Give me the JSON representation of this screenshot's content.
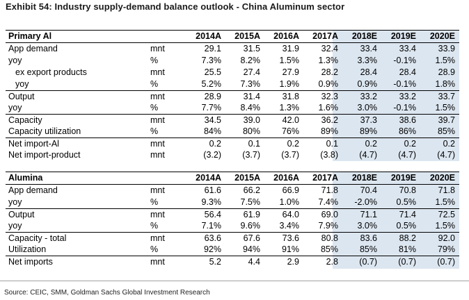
{
  "title": "Exhibit 54: Industry supply-demand balance outlook - China Aluminum sector",
  "tables": [
    {
      "name": "Primary Al",
      "columns": [
        "2014A",
        "2015A",
        "2016A",
        "2017A",
        "2018E",
        "2019E",
        "2020E"
      ],
      "rows": [
        {
          "label": "App demand",
          "unit": "mnt",
          "values": [
            "29.1",
            "31.5",
            "31.9",
            "32.4",
            "33.4",
            "33.4",
            "33.9"
          ]
        },
        {
          "label": "yoy",
          "unit": "%",
          "values": [
            "7.3%",
            "8.2%",
            "1.5%",
            "1.3%",
            "3.3%",
            "-0.1%",
            "1.5%"
          ]
        },
        {
          "label": "ex export products",
          "unit": "mnt",
          "values": [
            "25.5",
            "27.4",
            "27.9",
            "28.2",
            "28.4",
            "28.4",
            "28.9"
          ]
        },
        {
          "label": "yoy",
          "unit": "%",
          "values": [
            "5.2%",
            "7.3%",
            "1.9%",
            "0.9%",
            "0.9%",
            "-0.1%",
            "1.8%"
          ]
        },
        {
          "label": "Output",
          "unit": "mnt",
          "values": [
            "28.9",
            "31.4",
            "31.8",
            "32.3",
            "33.2",
            "33.2",
            "33.7"
          ]
        },
        {
          "label": "yoy",
          "unit": "%",
          "values": [
            "7.7%",
            "8.4%",
            "1.3%",
            "1.6%",
            "3.0%",
            "-0.1%",
            "1.5%"
          ]
        },
        {
          "label": "Capacity",
          "unit": "mnt",
          "values": [
            "34.5",
            "39.0",
            "42.0",
            "36.2",
            "37.3",
            "38.6",
            "39.7"
          ]
        },
        {
          "label": "Capacity utilization",
          "unit": "%",
          "values": [
            "84%",
            "80%",
            "76%",
            "89%",
            "89%",
            "86%",
            "85%"
          ]
        },
        {
          "label": "Net import-Al",
          "unit": "mnt",
          "values": [
            "0.2",
            "0.1",
            "0.2",
            "0.1",
            "0.2",
            "0.2",
            "0.2"
          ]
        },
        {
          "label": "Net import-product",
          "unit": "mnt",
          "values": [
            "(3.2)",
            "(3.7)",
            "(3.7)",
            "(3.8)",
            "(4.7)",
            "(4.7)",
            "(4.7)"
          ]
        }
      ]
    },
    {
      "name": "Alumina",
      "columns": [
        "2014A",
        "2015A",
        "2016A",
        "2017A",
        "2018E",
        "2019E",
        "2020E"
      ],
      "rows": [
        {
          "label": "App demand",
          "unit": "mnt",
          "values": [
            "61.6",
            "66.2",
            "66.9",
            "71.8",
            "70.4",
            "70.8",
            "71.8"
          ]
        },
        {
          "label": "yoy",
          "unit": "%",
          "values": [
            "9.3%",
            "7.5%",
            "1.0%",
            "7.4%",
            "-2.0%",
            "0.5%",
            "1.5%"
          ]
        },
        {
          "label": "Output",
          "unit": "mnt",
          "values": [
            "56.4",
            "61.9",
            "64.0",
            "69.0",
            "71.1",
            "71.4",
            "72.5"
          ]
        },
        {
          "label": "yoy",
          "unit": "%",
          "values": [
            "7.1%",
            "9.6%",
            "3.4%",
            "7.9%",
            "3.0%",
            "0.5%",
            "1.5%"
          ]
        },
        {
          "label": "Capacity - total",
          "unit": "mnt",
          "values": [
            "63.6",
            "67.6",
            "73.6",
            "80.8",
            "83.6",
            "88.2",
            "92.0"
          ]
        },
        {
          "label": "Utilization",
          "unit": "%",
          "values": [
            "92%",
            "94%",
            "91%",
            "85%",
            "85%",
            "81%",
            "79%"
          ]
        },
        {
          "label": "Net imports",
          "unit": "mnt",
          "values": [
            "5.2",
            "4.4",
            "2.9",
            "2.8",
            "(0.7)",
            "(0.7)",
            "(0.7)"
          ]
        }
      ]
    }
  ],
  "source": "Source: CEIC, SMM, Goldman Sachs Global Investment Research"
}
